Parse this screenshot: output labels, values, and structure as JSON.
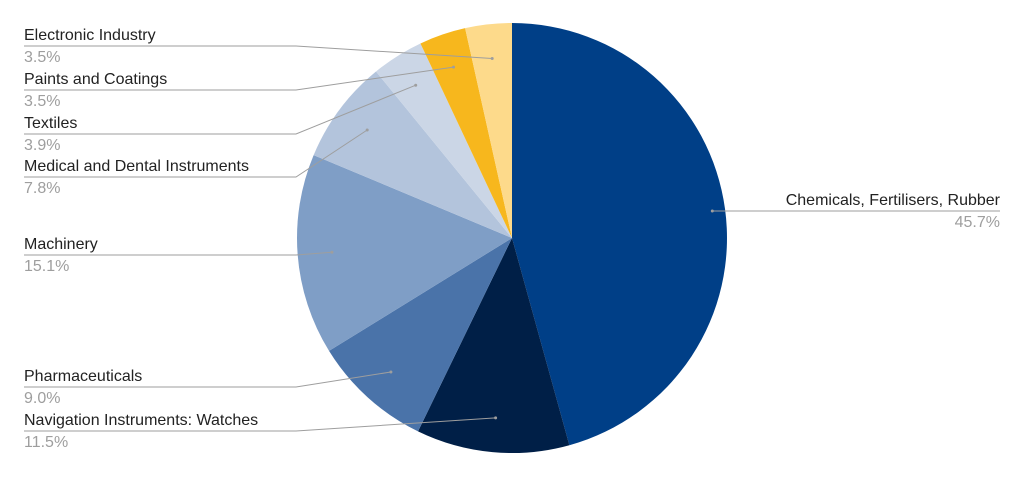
{
  "chart_data": {
    "type": "pie",
    "start": "top",
    "direction": "clockwise",
    "legend": "none",
    "slices": [
      {
        "label": "Chemicals, Fertilisers, Rubber",
        "value": 45.7,
        "pct_label": "45.7%",
        "color": "#003f87",
        "side": "right"
      },
      {
        "label": "Navigation Instruments: Watches",
        "value": 11.5,
        "pct_label": "11.5%",
        "color": "#001f47",
        "side": "left"
      },
      {
        "label": "Pharmaceuticals",
        "value": 9.0,
        "pct_label": "9.0%",
        "color": "#4a73a9",
        "side": "left"
      },
      {
        "label": "Machinery",
        "value": 15.1,
        "pct_label": "15.1%",
        "color": "#7f9ec6",
        "side": "left"
      },
      {
        "label": "Medical and Dental Instruments",
        "value": 7.8,
        "pct_label": "7.8%",
        "color": "#b3c4dc",
        "side": "left"
      },
      {
        "label": "Textiles",
        "value": 3.9,
        "pct_label": "3.9%",
        "color": "#cbd6e6",
        "side": "left"
      },
      {
        "label": "Paints and Coatings",
        "value": 3.5,
        "pct_label": "3.5%",
        "color": "#f7b71d",
        "side": "left"
      },
      {
        "label": "Electronic Industry",
        "value": 3.5,
        "pct_label": "3.5%",
        "color": "#fdda8b",
        "side": "left"
      }
    ]
  }
}
